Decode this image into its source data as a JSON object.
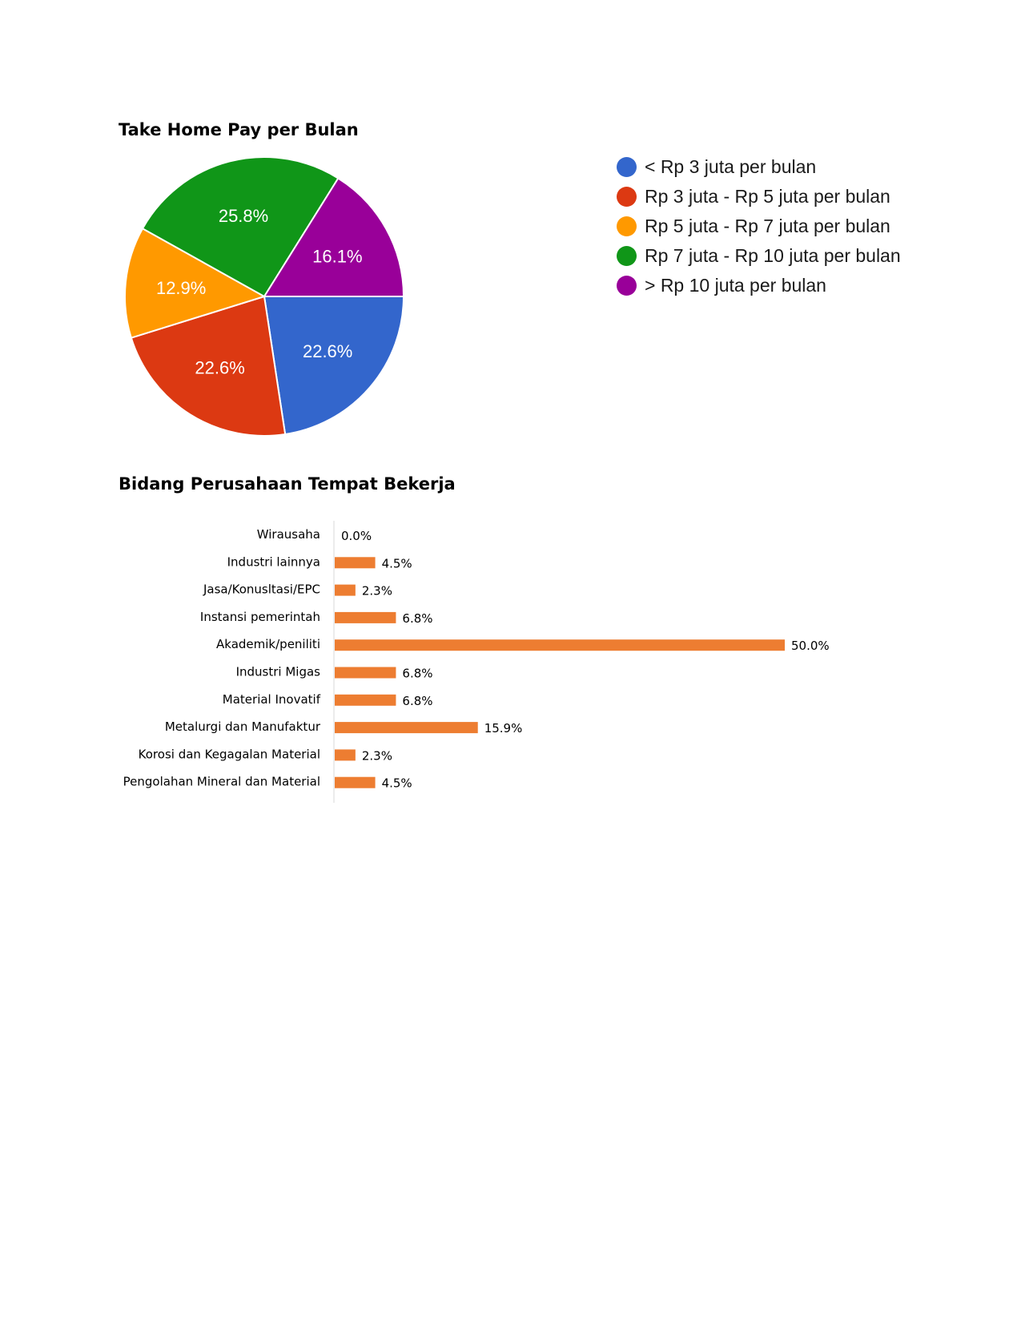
{
  "charts": {
    "pie_title": "Take Home Pay per Bulan",
    "bar_title": "Bidang Perusahaan Tempat Bekerja"
  },
  "chart_data": [
    {
      "type": "pie",
      "title": "Take Home Pay per Bulan",
      "legend_position": "right",
      "slices": [
        {
          "label": "< Rp 3 juta per bulan",
          "value": 22.6,
          "display": "22.6%",
          "color": "#3366cc"
        },
        {
          "label": "Rp 3 juta - Rp 5 juta per bulan",
          "value": 22.6,
          "display": "22.6%",
          "color": "#dc3912"
        },
        {
          "label": "Rp 5 juta - Rp 7 juta per bulan",
          "value": 12.9,
          "display": "12.9%",
          "color": "#ff9900"
        },
        {
          "label": "Rp 7 juta - Rp 10 juta per bulan",
          "value": 25.8,
          "display": "25.8%",
          "color": "#109618"
        },
        {
          "label": "> Rp 10 juta per bulan",
          "value": 16.1,
          "display": "16.1%",
          "color": "#990099"
        }
      ]
    },
    {
      "type": "bar",
      "orientation": "horizontal",
      "title": "Bidang Perusahaan Tempat Bekerja",
      "color": "#ed7d31",
      "xlim": [
        0,
        50
      ],
      "grid": false,
      "categories": [
        "Wirausaha",
        "Industri lainnya",
        "Jasa/Konusltasi/EPC",
        "Instansi pemerintah",
        "Akademik/peniliti",
        "Industri Migas",
        "Material Inovatif",
        "Metalurgi dan Manufaktur",
        "Korosi dan Kegagalan Material",
        "Pengolahan Mineral dan Material"
      ],
      "values": [
        0.0,
        4.5,
        2.3,
        6.8,
        50.0,
        6.8,
        6.8,
        15.9,
        2.3,
        4.5
      ],
      "labels": [
        "0.0%",
        "4.5%",
        "2.3%",
        "6.8%",
        "50.0%",
        "6.8%",
        "6.8%",
        "15.9%",
        "2.3%",
        "4.5%"
      ]
    }
  ]
}
